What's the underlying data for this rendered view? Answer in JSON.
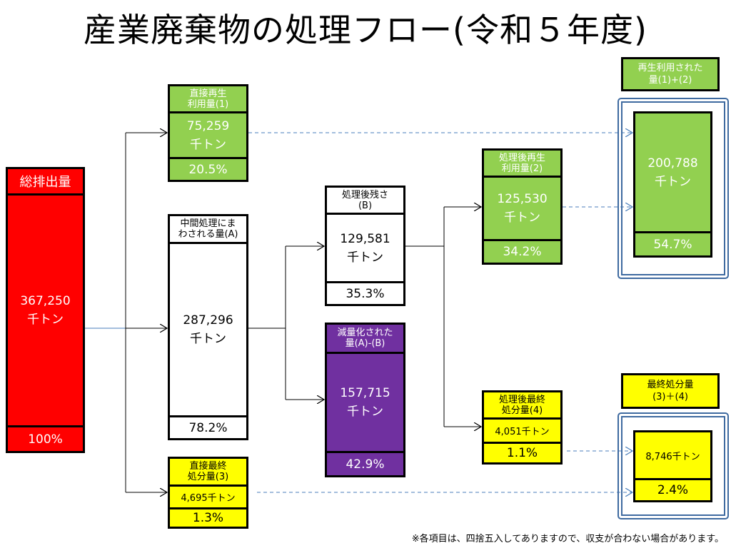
{
  "title": "産業廃棄物の処理フロー(令和５年度)",
  "unit": "千トン",
  "total": {
    "header": "総排出量",
    "value": "367,250",
    "percent": "100%"
  },
  "direct_recycle": {
    "header1": "直接再生",
    "header2": "利用量(1)",
    "value": "75,259",
    "percent": "20.5%"
  },
  "intermediate": {
    "header1": "中間処理にま",
    "header2": "わされる量(A)",
    "value": "287,296",
    "percent": "78.2%"
  },
  "direct_final": {
    "header1": "直接最終",
    "header2": "処分量(3)",
    "value": "4,695千トン",
    "percent": "1.3%"
  },
  "residue": {
    "header1": "処理後残さ",
    "header2": "(B)",
    "value": "129,581",
    "percent": "35.3%"
  },
  "reduced": {
    "header1": "減量化された",
    "header2": "量(A)-(B)",
    "value": "157,715",
    "percent": "42.9%"
  },
  "post_recycle": {
    "header1": "処理後再生",
    "header2": "利用量(2)",
    "value": "125,530",
    "percent": "34.2%"
  },
  "post_final": {
    "header1": "処理後最終",
    "header2": "処分量(4)",
    "value": "4,051千トン",
    "percent": "1.1%"
  },
  "recycled_total": {
    "label1": "再生利用された",
    "label2": "量(1)+(2)",
    "value": "200,788",
    "percent": "54.7%"
  },
  "final_total": {
    "label1": "最終処分量",
    "label2": "(3)＋(4)",
    "value": "8,746千トン",
    "percent": "2.4%"
  },
  "footnote": "※各項目は、四捨五入してありますので、収支が合わない場合があります。",
  "colors": {
    "green": "#92d050",
    "yellow": "#ffff00",
    "purple": "#7030a0",
    "red": "#ff0000",
    "frame": "#3e6aa0"
  }
}
